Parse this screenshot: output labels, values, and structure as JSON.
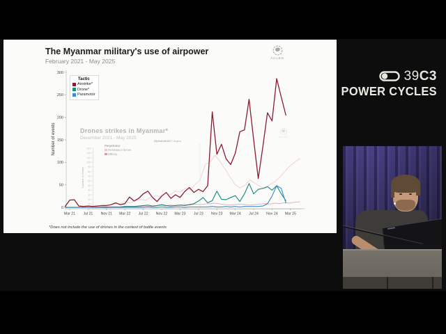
{
  "branding": {
    "congress_prefix": "39",
    "congress_suffix": "C3",
    "slogan": "POWER CYCLES"
  },
  "slide": {
    "logo_label": "ACLED",
    "ghost_logo_label": "ACLED"
  },
  "chart_data": [
    {
      "type": "line",
      "title": "The Myanmar military's use of airpower",
      "subtitle": "February 2021 - May 2025",
      "ylabel": "Number of events",
      "ylim": [
        0,
        300
      ],
      "y_ticks": [
        0,
        50,
        100,
        150,
        200,
        250,
        300
      ],
      "x_tick_labels": [
        "Mar 21",
        "Jul 21",
        "Nov 21",
        "Mar 22",
        "Jul 22",
        "Nov 22",
        "Mar 23",
        "Jul 23",
        "Nov 23",
        "Mar 24",
        "Jul 24",
        "Nov 24",
        "Mar 25"
      ],
      "x_start": "Feb 2021",
      "x_interval": "monthly",
      "grid": false,
      "legend_title": "Tactic",
      "legend_position": "top-left",
      "footnote": "*Does not include the use of drones in the context of battle events",
      "series": [
        {
          "name": "Airstrike*",
          "color": "#8b1a2e",
          "values": [
            2,
            16,
            17,
            3,
            2,
            3,
            2,
            3,
            4,
            4,
            6,
            10,
            6,
            8,
            23,
            14,
            20,
            30,
            36,
            22,
            13,
            25,
            33,
            20,
            28,
            22,
            35,
            44,
            33,
            40,
            35,
            48,
            212,
            118,
            140,
            108,
            95,
            120,
            168,
            172,
            240,
            150,
            64,
            135,
            210,
            192,
            286,
            245,
            205
          ]
        },
        {
          "name": "Drone*",
          "color": "#1f8a80",
          "values": [
            0,
            0,
            0,
            0,
            0,
            0,
            0,
            0,
            1,
            1,
            1,
            1,
            1,
            2,
            2,
            2,
            3,
            4,
            5,
            3,
            4,
            6,
            4,
            3,
            4,
            5,
            4,
            6,
            8,
            14,
            22,
            10,
            15,
            36,
            18,
            17,
            22,
            26,
            13,
            30,
            53,
            30,
            40,
            42,
            46,
            38,
            48,
            30,
            15
          ]
        },
        {
          "name": "Paramotor",
          "color": "#3d8fcb",
          "values": [
            0,
            0,
            0,
            0,
            0,
            0,
            0,
            0,
            0,
            0,
            0,
            0,
            0,
            0,
            0,
            0,
            0,
            0,
            1,
            0,
            0,
            1,
            0,
            0,
            1,
            1,
            0,
            1,
            1,
            1,
            1,
            1,
            2,
            1,
            1,
            2,
            1,
            2,
            1,
            2,
            2,
            2,
            2,
            3,
            8,
            25,
            48,
            42,
            10
          ]
        }
      ]
    },
    {
      "type": "line",
      "title": "Drones strikes in Myanmar*",
      "subtitle": "December 2021 - May 2025",
      "ylabel": "Number of events",
      "ylim": [
        0,
        130
      ],
      "y_ticks": [
        0,
        10,
        20,
        30,
        40,
        50,
        60,
        70,
        80,
        90,
        100,
        110,
        120,
        130
      ],
      "x_start": "Dec 2021",
      "x_interval": "monthly",
      "faded_overlay": true,
      "opacity": 0.3,
      "legend_title": "Perpetrator",
      "annotation": {
        "line1": "27 Oct. 2023:",
        "line2": "Operation 1027 begins"
      },
      "series": [
        {
          "name": "Resistance forces",
          "color": "#d4838d",
          "values": [
            4,
            6,
            5,
            8,
            10,
            12,
            14,
            13,
            17,
            20,
            18,
            24,
            28,
            26,
            34,
            30,
            38,
            36,
            44,
            40,
            52,
            62,
            95,
            100,
            115,
            102,
            85,
            68,
            52,
            45,
            50,
            62,
            55,
            48,
            42,
            52,
            58,
            68,
            80,
            92,
            100,
            108
          ]
        },
        {
          "name": "Military",
          "color": "#8b2332",
          "values": [
            2,
            3,
            2,
            3,
            4,
            3,
            4,
            5,
            4,
            5,
            6,
            5,
            6,
            7,
            6,
            8,
            7,
            8,
            9,
            8,
            10,
            9,
            10,
            11,
            12,
            10,
            9,
            8,
            9,
            10,
            9,
            8,
            9,
            10,
            11,
            10,
            12,
            11,
            13,
            12,
            14,
            15
          ]
        }
      ]
    }
  ]
}
